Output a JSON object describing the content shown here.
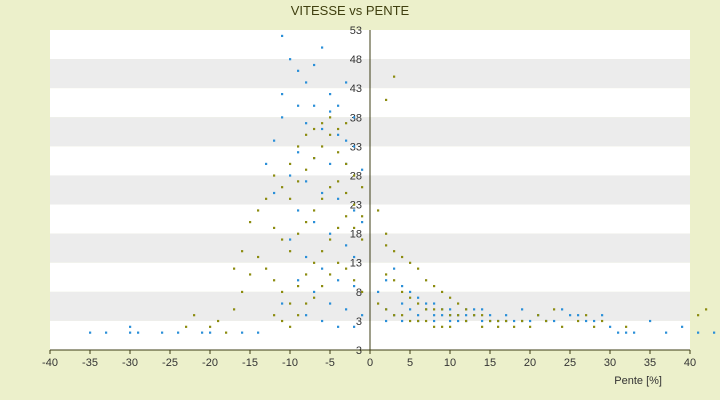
{
  "chart_data": {
    "type": "scatter",
    "title": "VITESSE vs PENTE",
    "xlabel": "Pente [%]",
    "ylabel": "",
    "xlim": [
      -40,
      40
    ],
    "ylim": [
      -2,
      53
    ],
    "x_ticks": [
      "-40",
      "-35",
      "-30",
      "-25",
      "-20",
      "-15",
      "-10",
      "-5",
      "0",
      "5",
      "10",
      "15",
      "20",
      "25",
      "30",
      "35",
      "40"
    ],
    "y_ticks": [
      "53",
      "48",
      "43",
      "38",
      "33",
      "28",
      "23",
      "18",
      "13",
      "8",
      "3",
      "3"
    ],
    "grid": "horizontal banded",
    "colors": {
      "series_blue": "#2a8fd8",
      "series_olive": "#8c8c10",
      "band_light": "#ffffff",
      "band_dark": "#ececec",
      "axis": "#3c3c14"
    },
    "series": [
      {
        "values": [
          [
            -35,
            1
          ],
          [
            -33,
            1
          ],
          [
            -30,
            1
          ],
          [
            -29,
            1
          ],
          [
            -30,
            2
          ],
          [
            -26,
            1
          ],
          [
            -24,
            1
          ],
          [
            -21,
            1
          ],
          [
            -20,
            1
          ],
          [
            -16,
            1
          ],
          [
            -14,
            1
          ],
          [
            -11,
            52
          ],
          [
            -10,
            48
          ],
          [
            -9,
            46
          ],
          [
            -7,
            47
          ],
          [
            -6,
            50
          ],
          [
            -8,
            44
          ],
          [
            -5,
            42
          ],
          [
            -3,
            44
          ],
          [
            -11,
            42
          ],
          [
            -9,
            40
          ],
          [
            -7,
            40
          ],
          [
            -5,
            39
          ],
          [
            -4,
            40
          ],
          [
            -2,
            38
          ],
          [
            -11,
            38
          ],
          [
            -8,
            37
          ],
          [
            -6,
            36
          ],
          [
            -4,
            35
          ],
          [
            -3,
            34
          ],
          [
            -2,
            33
          ],
          [
            -12,
            34
          ],
          [
            -9,
            32
          ],
          [
            -7,
            31
          ],
          [
            -5,
            30
          ],
          [
            -3,
            30
          ],
          [
            -1,
            29
          ],
          [
            -13,
            30
          ],
          [
            -10,
            28
          ],
          [
            -8,
            27
          ],
          [
            -6,
            25
          ],
          [
            -4,
            24
          ],
          [
            -2,
            22
          ],
          [
            -1,
            20
          ],
          [
            -12,
            25
          ],
          [
            -9,
            22
          ],
          [
            -7,
            20
          ],
          [
            -5,
            18
          ],
          [
            -3,
            16
          ],
          [
            -2,
            14
          ],
          [
            -10,
            17
          ],
          [
            -8,
            14
          ],
          [
            -6,
            12
          ],
          [
            -4,
            10
          ],
          [
            -2,
            9
          ],
          [
            -9,
            10
          ],
          [
            -7,
            8
          ],
          [
            -5,
            6
          ],
          [
            -3,
            5
          ],
          [
            -1,
            4
          ],
          [
            -11,
            6
          ],
          [
            -8,
            4
          ],
          [
            -6,
            3
          ],
          [
            -4,
            2
          ],
          [
            -2,
            2
          ],
          [
            1,
            8
          ],
          [
            2,
            10
          ],
          [
            3,
            12
          ],
          [
            4,
            9
          ],
          [
            5,
            8
          ],
          [
            6,
            7
          ],
          [
            7,
            6
          ],
          [
            8,
            6
          ],
          [
            9,
            5
          ],
          [
            10,
            5
          ],
          [
            11,
            4
          ],
          [
            12,
            4
          ],
          [
            13,
            4
          ],
          [
            14,
            3
          ],
          [
            15,
            3
          ],
          [
            16,
            3
          ],
          [
            17,
            3
          ],
          [
            18,
            3
          ],
          [
            19,
            3
          ],
          [
            20,
            3
          ],
          [
            21,
            4
          ],
          [
            22,
            3
          ],
          [
            24,
            5
          ],
          [
            25,
            4
          ],
          [
            27,
            3
          ],
          [
            28,
            3
          ],
          [
            30,
            2
          ],
          [
            31,
            1
          ],
          [
            32,
            1
          ],
          [
            33,
            1
          ],
          [
            35,
            3
          ],
          [
            37,
            1
          ],
          [
            39,
            2
          ],
          [
            41,
            1
          ],
          [
            43,
            1
          ],
          [
            2,
            5
          ],
          [
            3,
            4
          ],
          [
            4,
            6
          ],
          [
            5,
            5
          ],
          [
            6,
            4
          ],
          [
            7,
            5
          ],
          [
            8,
            4
          ],
          [
            9,
            4
          ],
          [
            10,
            3
          ],
          [
            11,
            3
          ],
          [
            12,
            3
          ],
          [
            13,
            5
          ],
          [
            14,
            5
          ],
          [
            2,
            3
          ],
          [
            4,
            3
          ],
          [
            6,
            3
          ],
          [
            8,
            3
          ],
          [
            10,
            4
          ],
          [
            12,
            5
          ],
          [
            15,
            4
          ],
          [
            17,
            4
          ],
          [
            19,
            5
          ],
          [
            23,
            3
          ],
          [
            26,
            4
          ],
          [
            29,
            4
          ]
        ]
      },
      {
        "values": [
          [
            -23,
            2
          ],
          [
            -22,
            4
          ],
          [
            -18,
            1
          ],
          [
            -17,
            5
          ],
          [
            -16,
            8
          ],
          [
            -15,
            11
          ],
          [
            -14,
            14
          ],
          [
            -15,
            20
          ],
          [
            -14,
            22
          ],
          [
            -13,
            24
          ],
          [
            -12,
            28
          ],
          [
            -11,
            26
          ],
          [
            -10,
            24
          ],
          [
            -9,
            27
          ],
          [
            -8,
            29
          ],
          [
            -7,
            31
          ],
          [
            -6,
            33
          ],
          [
            -5,
            35
          ],
          [
            -4,
            32
          ],
          [
            -3,
            30
          ],
          [
            -2,
            28
          ],
          [
            -1,
            26
          ],
          [
            -12,
            19
          ],
          [
            -11,
            17
          ],
          [
            -10,
            15
          ],
          [
            -9,
            18
          ],
          [
            -8,
            20
          ],
          [
            -7,
            22
          ],
          [
            -6,
            24
          ],
          [
            -5,
            26
          ],
          [
            -4,
            27
          ],
          [
            -3,
            25
          ],
          [
            -2,
            23
          ],
          [
            -1,
            21
          ],
          [
            -13,
            12
          ],
          [
            -12,
            10
          ],
          [
            -11,
            8
          ],
          [
            -10,
            6
          ],
          [
            -9,
            9
          ],
          [
            -8,
            11
          ],
          [
            -7,
            13
          ],
          [
            -6,
            15
          ],
          [
            -5,
            17
          ],
          [
            -4,
            19
          ],
          [
            -3,
            21
          ],
          [
            -2,
            19
          ],
          [
            -1,
            17
          ],
          [
            -12,
            4
          ],
          [
            -11,
            3
          ],
          [
            -10,
            2
          ],
          [
            -9,
            4
          ],
          [
            -8,
            6
          ],
          [
            -7,
            7
          ],
          [
            -6,
            9
          ],
          [
            -5,
            11
          ],
          [
            -4,
            13
          ],
          [
            -3,
            12
          ],
          [
            -2,
            10
          ],
          [
            -1,
            8
          ],
          [
            -10,
            30
          ],
          [
            -9,
            33
          ],
          [
            -8,
            35
          ],
          [
            -7,
            36
          ],
          [
            -6,
            37
          ],
          [
            -5,
            38
          ],
          [
            -4,
            36
          ],
          [
            -3,
            37
          ],
          [
            -20,
            2
          ],
          [
            -19,
            3
          ],
          [
            -16,
            15
          ],
          [
            -17,
            12
          ],
          [
            2,
            18
          ],
          [
            2,
            41
          ],
          [
            3,
            45
          ],
          [
            1,
            22
          ],
          [
            2,
            16
          ],
          [
            3,
            15
          ],
          [
            4,
            14
          ],
          [
            5,
            13
          ],
          [
            6,
            12
          ],
          [
            7,
            10
          ],
          [
            8,
            9
          ],
          [
            9,
            8
          ],
          [
            10,
            7
          ],
          [
            11,
            6
          ],
          [
            12,
            5
          ],
          [
            13,
            4
          ],
          [
            14,
            4
          ],
          [
            15,
            3
          ],
          [
            16,
            3
          ],
          [
            17,
            3
          ],
          [
            18,
            2
          ],
          [
            20,
            2
          ],
          [
            22,
            3
          ],
          [
            24,
            2
          ],
          [
            26,
            3
          ],
          [
            28,
            2
          ],
          [
            2,
            11
          ],
          [
            3,
            10
          ],
          [
            4,
            8
          ],
          [
            5,
            7
          ],
          [
            6,
            6
          ],
          [
            7,
            5
          ],
          [
            8,
            5
          ],
          [
            9,
            5
          ],
          [
            10,
            4
          ],
          [
            11,
            4
          ],
          [
            12,
            3
          ],
          [
            1,
            6
          ],
          [
            2,
            5
          ],
          [
            3,
            4
          ],
          [
            4,
            4
          ],
          [
            5,
            3
          ],
          [
            6,
            3
          ],
          [
            7,
            3
          ],
          [
            8,
            2
          ],
          [
            9,
            2
          ],
          [
            10,
            2
          ],
          [
            14,
            2
          ],
          [
            16,
            2
          ],
          [
            19,
            3
          ],
          [
            21,
            4
          ],
          [
            23,
            5
          ],
          [
            27,
            4
          ],
          [
            29,
            3
          ],
          [
            32,
            2
          ],
          [
            41,
            4
          ],
          [
            42,
            5
          ]
        ]
      }
    ]
  }
}
